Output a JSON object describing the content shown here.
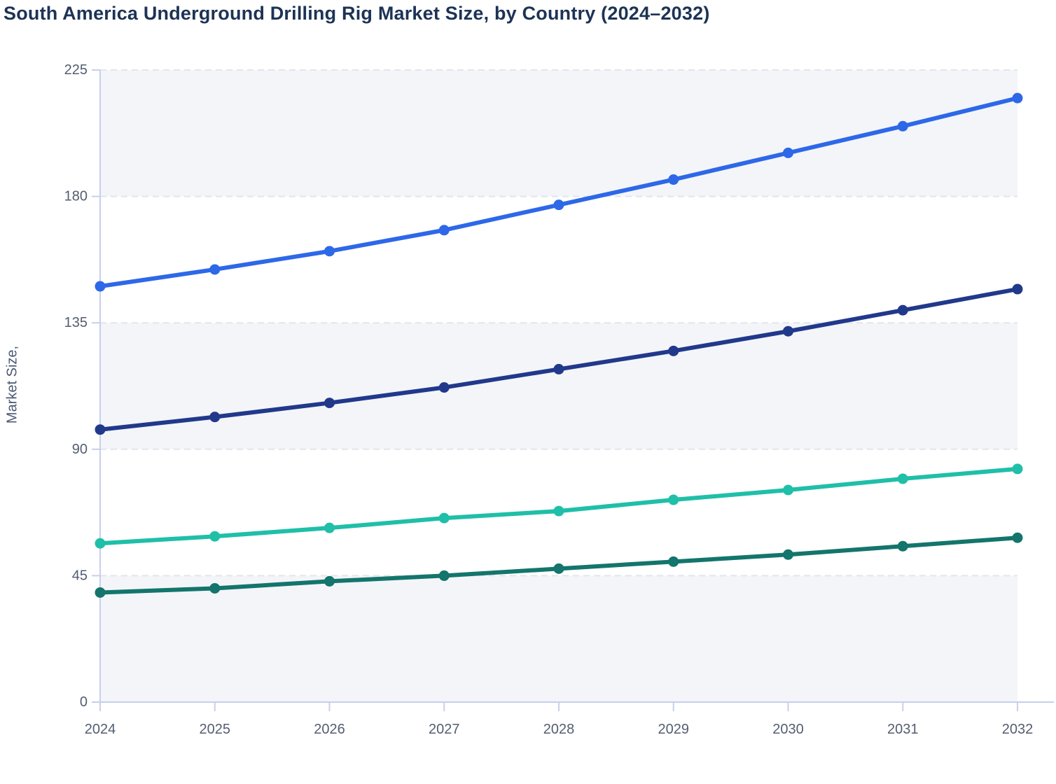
{
  "title": "South America Underground Drilling Rig Market Size, by Country (2024–2032)",
  "y_axis_label": "Market Size,",
  "colors": {
    "title_text": "#1d3355",
    "axis_line": "#c6cfec",
    "gridline": "#e2e5ea",
    "tick_label": "#535e70",
    "band_fill": "#f4f5f9",
    "background": "#ffffff"
  },
  "chart_data": {
    "type": "line",
    "title": "South America Underground Drilling Rig Market Size, by Country (2024–2032)",
    "xlabel": "",
    "ylabel": "Market Size,",
    "x": [
      2024,
      2025,
      2026,
      2027,
      2028,
      2029,
      2030,
      2031,
      2032
    ],
    "ylim": [
      0,
      225
    ],
    "yticks": [
      0,
      45,
      90,
      135,
      180,
      225
    ],
    "grid": "horizontal-dashed",
    "legend_position": "none",
    "series": [
      {
        "name": "Blue",
        "color": "#2d68e8",
        "values": [
          148,
          154,
          160.5,
          168,
          177,
          186,
          195.5,
          205,
          215
        ]
      },
      {
        "name": "Dark Navy",
        "color": "#21398b",
        "values": [
          97,
          101.5,
          106.5,
          112,
          118.5,
          125,
          132,
          139.5,
          147
        ]
      },
      {
        "name": "Teal",
        "color": "#1fbfa8",
        "values": [
          56.5,
          59,
          62,
          65.5,
          68,
          72,
          75.5,
          79.5,
          83
        ]
      },
      {
        "name": "Dark Teal",
        "color": "#13756c",
        "values": [
          39,
          40.5,
          43,
          45,
          47.5,
          50,
          52.5,
          55.5,
          58.5
        ]
      }
    ]
  }
}
